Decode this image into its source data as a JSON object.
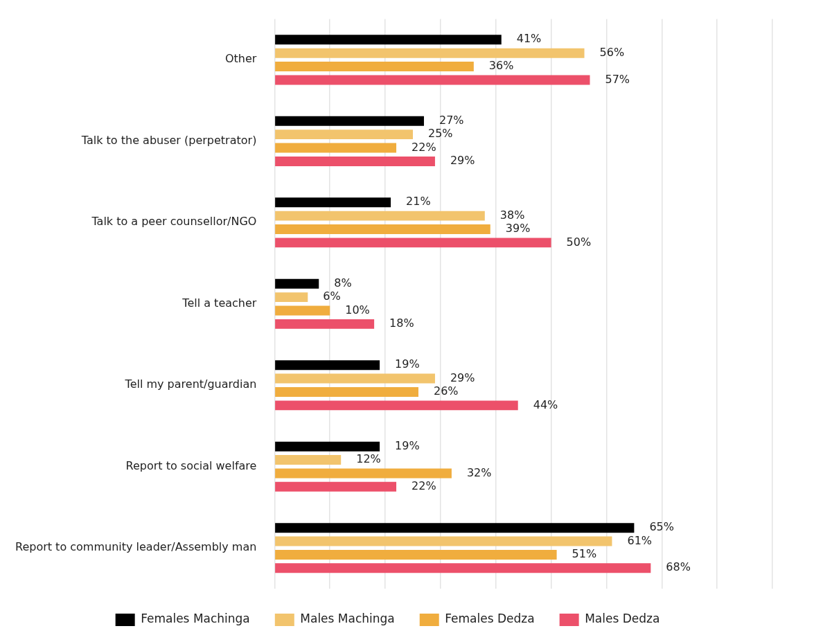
{
  "chart_data": {
    "type": "bar",
    "orientation": "horizontal",
    "categories": [
      "Other",
      "Talk to the abuser (perpetrator)",
      "Talk to a peer counsellor/NGO",
      "Tell a teacher",
      "Tell my parent/guardian",
      "Report to social welfare",
      "Report to community leader/Assembly man"
    ],
    "series": [
      {
        "name": "Females Machinga",
        "color": "#000000",
        "values": [
          41,
          27,
          21,
          8,
          19,
          19,
          65
        ],
        "value_labels": [
          "41%",
          "27%",
          "21%",
          "8%",
          "19%",
          "19%",
          "65%"
        ]
      },
      {
        "name": "Males Machinga",
        "color": "#f2c46d",
        "values": [
          56,
          25,
          38,
          6,
          29,
          12,
          61
        ],
        "value_labels": [
          "56%",
          "25%",
          "38%",
          "6%",
          "29%",
          "12%",
          "61%"
        ]
      },
      {
        "name": "Females Dedza",
        "color": "#f0ad3e",
        "values": [
          36,
          22,
          39,
          10,
          26,
          32,
          51
        ],
        "value_labels": [
          "36%",
          "22%",
          "39%",
          "10%",
          "26%",
          "32%",
          "51%"
        ]
      },
      {
        "name": "Males Dedza",
        "color": "#ec506a",
        "values": [
          57,
          29,
          50,
          18,
          44,
          22,
          68
        ],
        "value_labels": [
          "57%",
          "29%",
          "50%",
          "18%",
          "44%",
          "22%",
          "68%"
        ]
      }
    ],
    "xlim": [
      0,
      90
    ],
    "xticks": [
      {
        "value": 0,
        "label": null
      },
      {
        "value": 10,
        "label": null
      },
      {
        "value": 20,
        "label": null
      },
      {
        "value": 30,
        "label": null
      },
      {
        "value": 40,
        "label": null
      },
      {
        "value": 50,
        "label": null
      },
      {
        "value": 60,
        "label": null
      },
      {
        "value": 70,
        "label": null
      },
      {
        "value": 80,
        "label": null
      },
      {
        "value": 90,
        "label": null
      }
    ],
    "tick_labels": "y",
    "grid": "x",
    "legend": "bottom"
  }
}
